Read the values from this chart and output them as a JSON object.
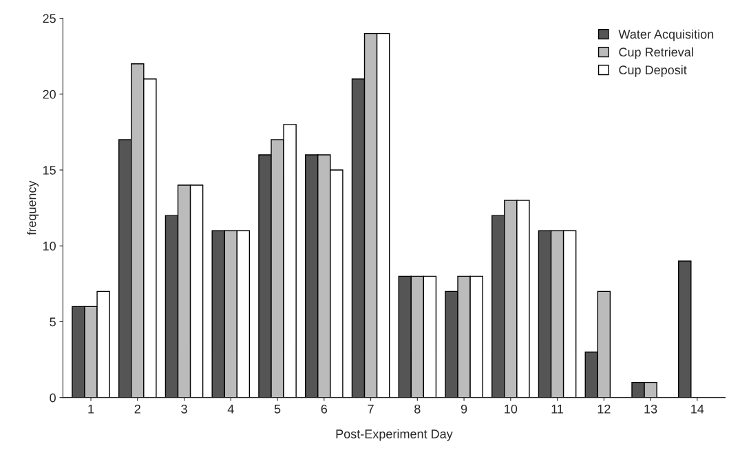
{
  "chart_data": {
    "type": "bar",
    "xlabel": "Post-Experiment Day",
    "ylabel": "frequency",
    "categories": [
      "1",
      "2",
      "3",
      "4",
      "5",
      "6",
      "7",
      "8",
      "9",
      "10",
      "11",
      "12",
      "13",
      "14"
    ],
    "series": [
      {
        "name": "Water Acquisition",
        "color": "#555555",
        "values": [
          6,
          17,
          12,
          11,
          16,
          16,
          21,
          8,
          7,
          12,
          11,
          3,
          1,
          9
        ]
      },
      {
        "name": "Cup Retrieval",
        "color": "#bbbbbb",
        "values": [
          6,
          22,
          14,
          11,
          17,
          16,
          24,
          8,
          8,
          13,
          11,
          7,
          1,
          null
        ]
      },
      {
        "name": "Cup Deposit",
        "color": "#ffffff",
        "values": [
          7,
          21,
          14,
          11,
          18,
          15,
          24,
          8,
          8,
          13,
          11,
          null,
          null,
          null
        ]
      }
    ],
    "ylim": [
      0,
      25
    ],
    "yticks": [
      0,
      5,
      10,
      15,
      20,
      25
    ],
    "grid": false,
    "legend": "top right"
  }
}
